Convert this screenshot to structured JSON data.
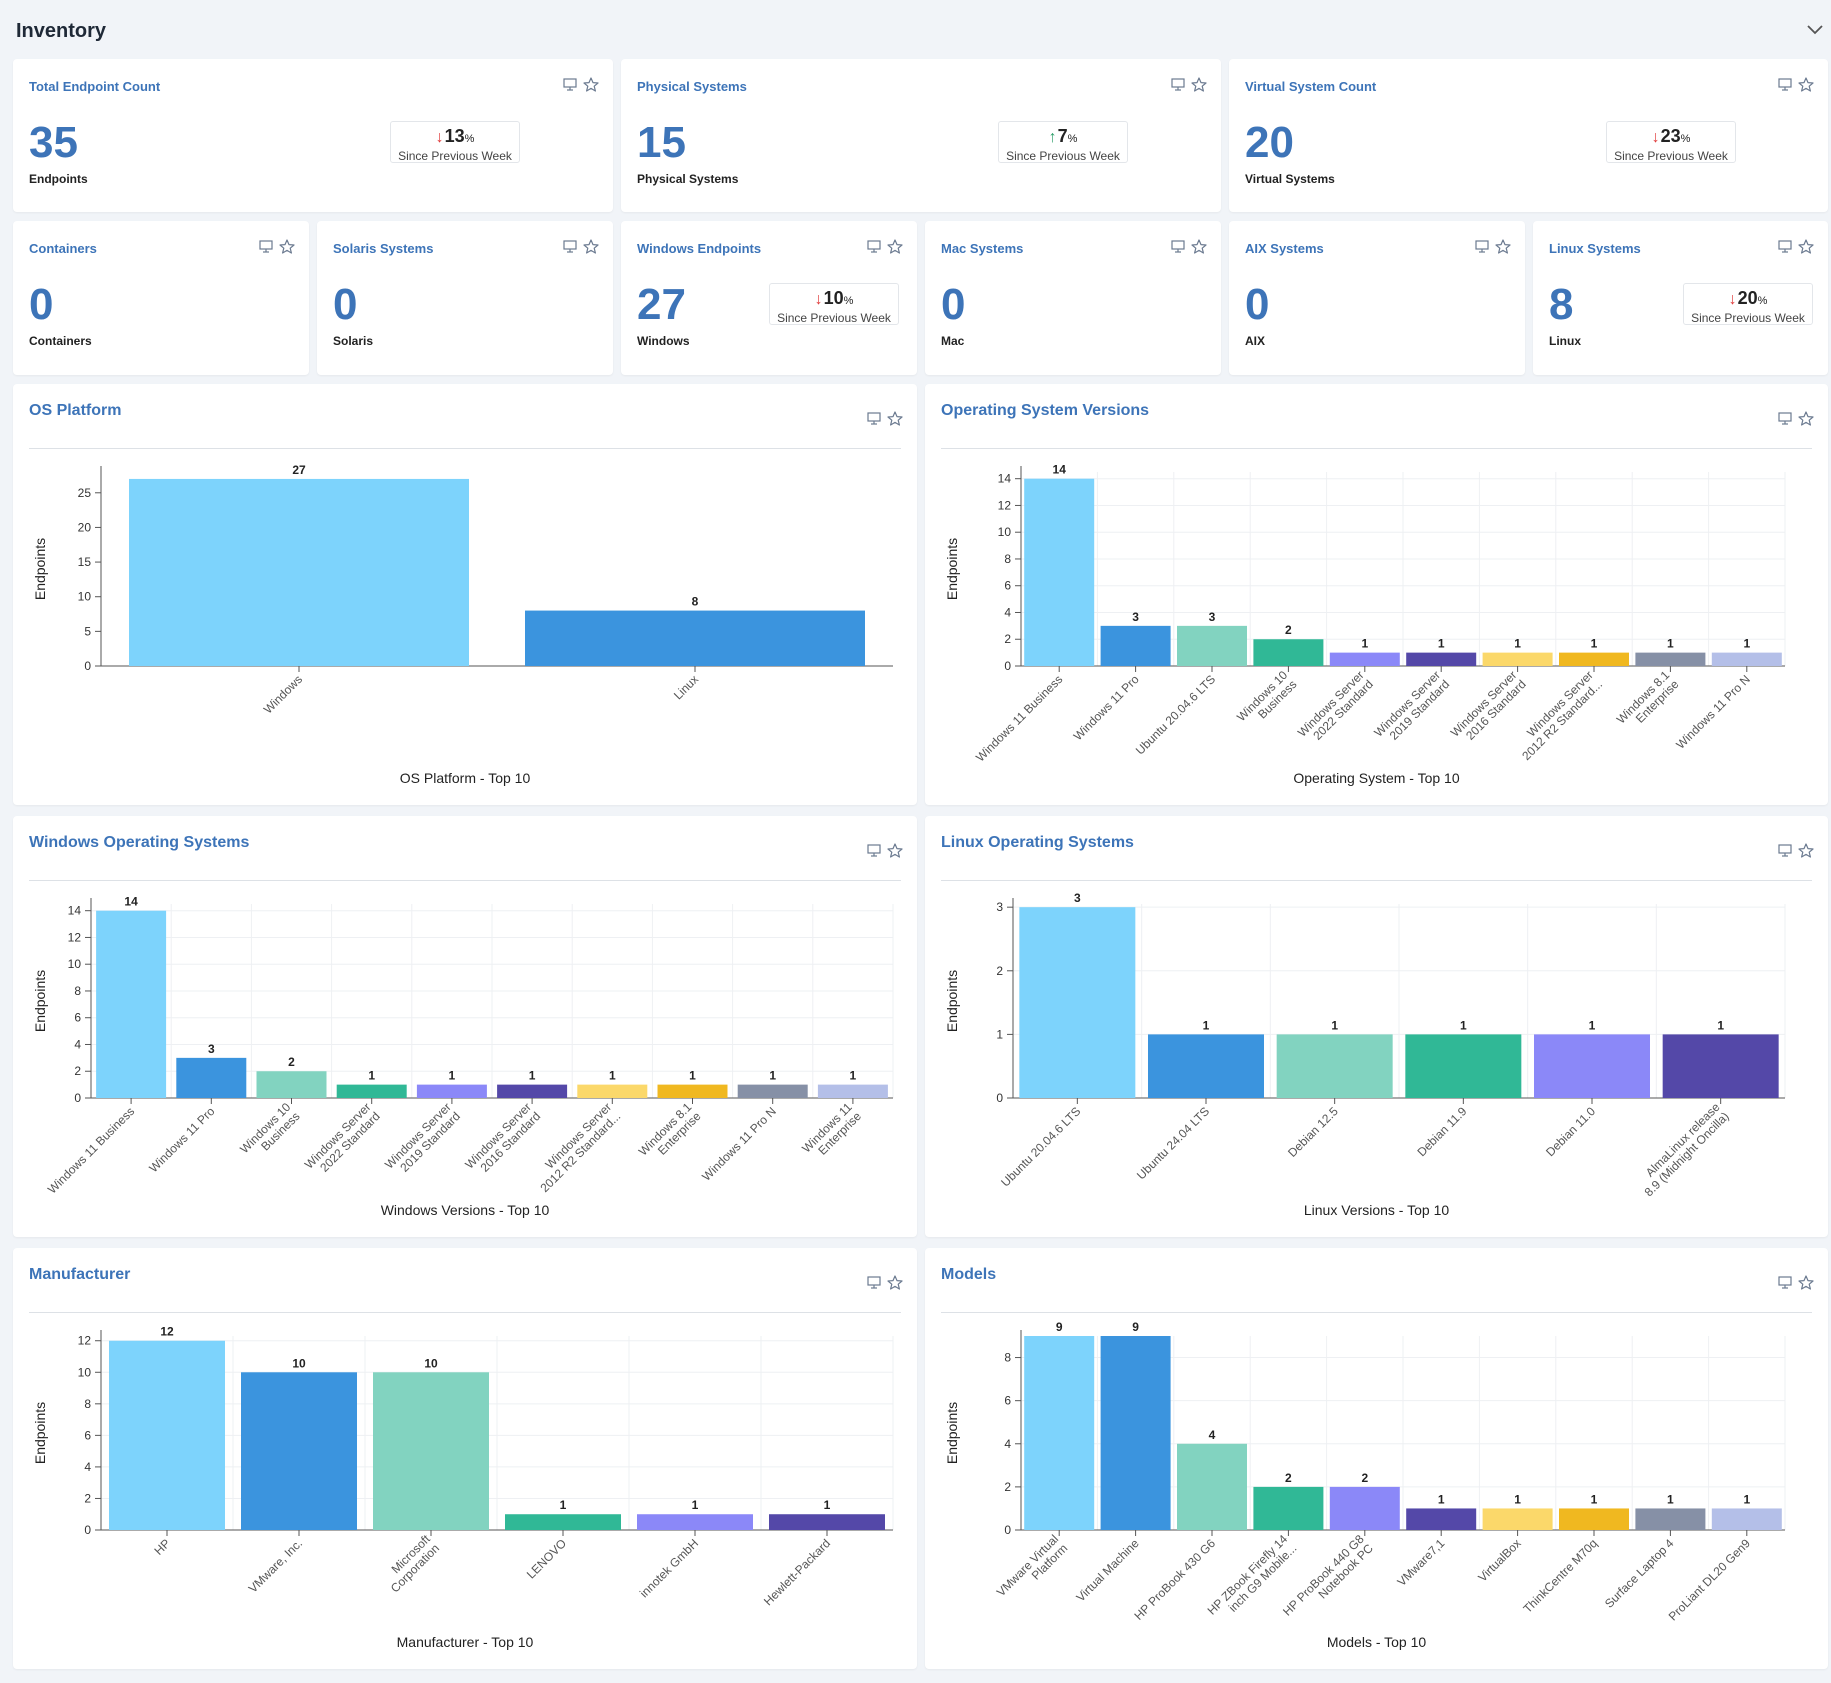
{
  "header": {
    "title": "Inventory"
  },
  "kpis": [
    {
      "id": "total-endpoint-count",
      "title": "Total Endpoint Count",
      "value": "35",
      "unit": "Endpoints",
      "trend": {
        "direction": "down",
        "value": "13",
        "pct": "%",
        "label": "Since Previous Week"
      }
    },
    {
      "id": "physical-systems",
      "title": "Physical Systems",
      "value": "15",
      "unit": "Physical Systems",
      "trend": {
        "direction": "up",
        "value": "7",
        "pct": "%",
        "label": "Since Previous Week"
      }
    },
    {
      "id": "virtual-system-count",
      "title": "Virtual System Count",
      "value": "20",
      "unit": "Virtual Systems",
      "trend": {
        "direction": "down",
        "value": "23",
        "pct": "%",
        "label": "Since Previous Week"
      }
    },
    {
      "id": "containers",
      "title": "Containers",
      "value": "0",
      "unit": "Containers"
    },
    {
      "id": "solaris-systems",
      "title": "Solaris Systems",
      "value": "0",
      "unit": "Solaris"
    },
    {
      "id": "windows-endpoints",
      "title": "Windows Endpoints",
      "value": "27",
      "unit": "Windows",
      "trend": {
        "direction": "down",
        "value": "10",
        "pct": "%",
        "label": "Since Previous Week"
      }
    },
    {
      "id": "mac-systems",
      "title": "Mac Systems",
      "value": "0",
      "unit": "Mac"
    },
    {
      "id": "aix-systems",
      "title": "AIX Systems",
      "value": "0",
      "unit": "AIX"
    },
    {
      "id": "linux-systems",
      "title": "Linux Systems",
      "value": "8",
      "unit": "Linux",
      "trend": {
        "direction": "down",
        "value": "20",
        "pct": "%",
        "label": "Since Previous Week"
      }
    }
  ],
  "palette": [
    "#7dd3fc",
    "#3b94de",
    "#82d3c0",
    "#30b896",
    "#8b88f8",
    "#5448a8",
    "#fbd86a",
    "#f0b820",
    "#8690a6",
    "#b4bfe8"
  ],
  "chart_data": [
    {
      "id": "os-platform",
      "type": "bar",
      "title": "OS Platform",
      "caption": "OS Platform - Top 10",
      "ylabel": "Endpoints",
      "ylim": [
        0,
        28
      ],
      "yticks": [
        0,
        5,
        10,
        15,
        20,
        25
      ],
      "grid": false,
      "categories": [
        [
          "Windows"
        ],
        [
          "Linux"
        ]
      ],
      "values": [
        27,
        8
      ]
    },
    {
      "id": "operating-system-versions",
      "type": "bar",
      "title": "Operating System Versions",
      "caption": "Operating System - Top 10",
      "ylabel": "Endpoints",
      "ylim": [
        0,
        14.5
      ],
      "yticks": [
        0,
        2,
        4,
        6,
        8,
        10,
        12,
        14
      ],
      "grid": true,
      "categories": [
        [
          "Windows 11 Business"
        ],
        [
          "Windows 11 Pro"
        ],
        [
          "Ubuntu 20.04.6 LTS"
        ],
        [
          "Windows 10",
          "Business"
        ],
        [
          "Windows Server",
          "2022 Standard"
        ],
        [
          "Windows Server",
          "2019 Standard"
        ],
        [
          "Windows Server",
          "2016 Standard"
        ],
        [
          "Windows Server",
          "2012 R2 Standard..."
        ],
        [
          "Windows 8.1",
          "Enterprise"
        ],
        [
          "Windows 11 Pro N"
        ]
      ],
      "values": [
        14,
        3,
        3,
        2,
        1,
        1,
        1,
        1,
        1,
        1
      ]
    },
    {
      "id": "windows-operating-systems",
      "type": "bar",
      "title": "Windows Operating Systems",
      "caption": "Windows Versions - Top 10",
      "ylabel": "Endpoints",
      "ylim": [
        0,
        14.5
      ],
      "yticks": [
        0,
        2,
        4,
        6,
        8,
        10,
        12,
        14
      ],
      "grid": true,
      "categories": [
        [
          "Windows 11 Business"
        ],
        [
          "Windows 11 Pro"
        ],
        [
          "Windows 10",
          "Business"
        ],
        [
          "Windows Server",
          "2022 Standard"
        ],
        [
          "Windows Server",
          "2019 Standard"
        ],
        [
          "Windows Server",
          "2016 Standard"
        ],
        [
          "Windows Server",
          "2012 R2 Standard..."
        ],
        [
          "Windows 8.1",
          "Enterprise"
        ],
        [
          "Windows 11 Pro N"
        ],
        [
          "Windows 11",
          "Enterprise"
        ]
      ],
      "values": [
        14,
        3,
        2,
        1,
        1,
        1,
        1,
        1,
        1,
        1
      ]
    },
    {
      "id": "linux-operating-systems",
      "type": "bar",
      "title": "Linux Operating Systems",
      "caption": "Linux Versions - Top 10",
      "ylabel": "Endpoints",
      "ylim": [
        0,
        3.05
      ],
      "yticks": [
        0,
        1,
        2,
        3
      ],
      "grid": true,
      "categories": [
        [
          "Ubuntu 20.04.6 LTS"
        ],
        [
          "Ubuntu 24.04 LTS"
        ],
        [
          "Debian 12.5"
        ],
        [
          "Debian 11.9"
        ],
        [
          "Debian 11.0"
        ],
        [
          "AlmaLinux release",
          "8.9 (Midnight Oncilla)"
        ]
      ],
      "values": [
        3,
        1,
        1,
        1,
        1,
        1
      ]
    },
    {
      "id": "manufacturer",
      "type": "bar",
      "title": "Manufacturer",
      "caption": "Manufacturer - Top 10",
      "ylabel": "Endpoints",
      "ylim": [
        0,
        12.3
      ],
      "yticks": [
        0,
        2,
        4,
        6,
        8,
        10,
        12
      ],
      "grid": true,
      "categories": [
        [
          "HP"
        ],
        [
          "VMware, Inc."
        ],
        [
          "Microsoft",
          "Corporation"
        ],
        [
          "LENOVO"
        ],
        [
          "innotek GmbH"
        ],
        [
          "Hewlett-Packard"
        ]
      ],
      "values": [
        12,
        10,
        10,
        1,
        1,
        1
      ]
    },
    {
      "id": "models",
      "type": "bar",
      "title": "Models",
      "caption": "Models - Top 10",
      "ylabel": "Endpoints",
      "ylim": [
        0,
        9
      ],
      "yticks": [
        0,
        2,
        4,
        6,
        8
      ],
      "grid": true,
      "categories": [
        [
          "VMware Virtual",
          "Platform"
        ],
        [
          "Virtual Machine"
        ],
        [
          "HP ProBook 430 G6"
        ],
        [
          "HP ZBook Firefly 14",
          "inch G9 Mobile..."
        ],
        [
          "HP ProBook 440 G8",
          "Notebook PC"
        ],
        [
          "VMware7,1"
        ],
        [
          "VirtualBox"
        ],
        [
          "ThinkCentre M70q"
        ],
        [
          "Surface Laptop 4"
        ],
        [
          "ProLiant DL20 Gen9"
        ]
      ],
      "values": [
        9,
        9,
        4,
        2,
        2,
        1,
        1,
        1,
        1,
        1
      ]
    }
  ]
}
